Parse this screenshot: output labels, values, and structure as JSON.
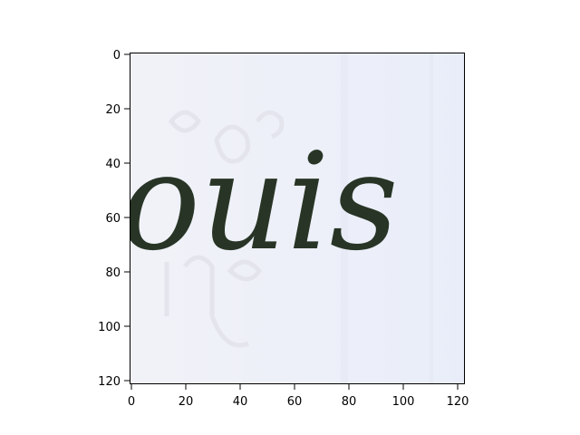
{
  "image": {
    "text": "ouis",
    "ink_color": "#283526",
    "paper_color": "#eef1fa",
    "showthrough_color": "#e2e2e8"
  },
  "axes": {
    "x_ticks": [
      "0",
      "20",
      "40",
      "60",
      "80",
      "100",
      "120"
    ],
    "y_ticks": [
      "0",
      "20",
      "40",
      "60",
      "80",
      "100",
      "120"
    ],
    "x_range": [
      0,
      123
    ],
    "y_range": [
      0,
      123
    ]
  }
}
